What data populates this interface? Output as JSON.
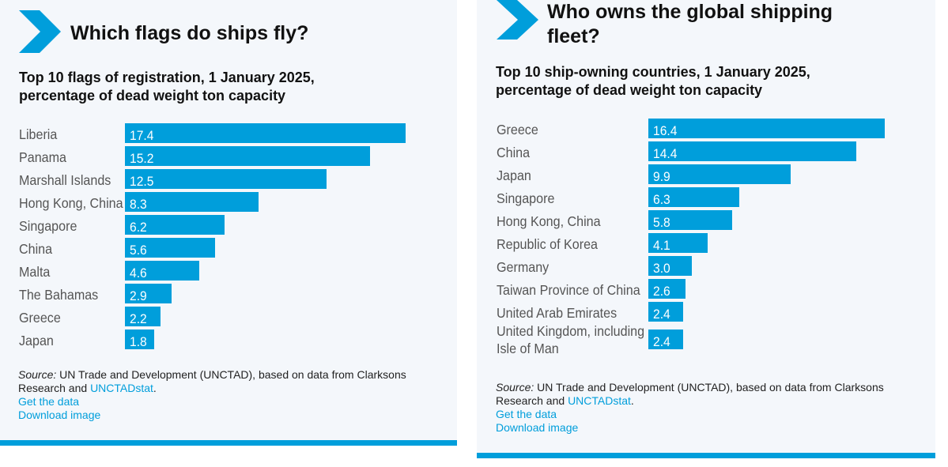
{
  "panels": [
    {
      "title": "Which flags do ships fly?",
      "subtitle_line1": "Top 10 flags of registration, 1 January 2025,",
      "subtitle_line2": "percentage of dead weight ton capacity",
      "source_label": "Source:",
      "source_text1": " UN Trade and Development (UNCTAD), based on data from Clarksons",
      "source_text2": "Research and ",
      "source_link": "UNCTADstat",
      "source_end": ".",
      "get_data": "Get the data",
      "download": "Download image"
    },
    {
      "title_line1": "Who owns the global shipping",
      "title_line2": "fleet?",
      "subtitle_line1": "Top 10 ship-owning countries, 1 January 2025,",
      "subtitle_line2": "percentage of dead weight ton capacity",
      "source_label": "Source:",
      "source_text1": " UN Trade and Development (UNCTAD), based on data from Clarksons",
      "source_text2": "Research and ",
      "source_link": "UNCTADstat",
      "source_end": ".",
      "get_data": "Get the data",
      "download": "Download image"
    }
  ],
  "colors": {
    "accent": "#009edb",
    "panel_bg": "#f4f7fb",
    "label": "#555555"
  },
  "chart_data": [
    {
      "type": "bar",
      "orientation": "horizontal",
      "title": "Which flags do ships fly?",
      "subtitle": "Top 10 flags of registration, 1 January 2025, percentage of dead weight ton capacity",
      "categories": [
        "Liberia",
        "Panama",
        "Marshall Islands",
        "Hong Kong, China",
        "Singapore",
        "China",
        "Malta",
        "The Bahamas",
        "Greece",
        "Japan"
      ],
      "values": [
        17.4,
        15.2,
        12.5,
        8.3,
        6.2,
        5.6,
        4.6,
        2.9,
        2.2,
        1.8
      ],
      "value_labels": [
        "17.4",
        "15.2",
        "12.5",
        "8.3",
        "6.2",
        "5.6",
        "4.6",
        "2.9",
        "2.2",
        "1.8"
      ],
      "xlim": [
        0,
        17.4
      ],
      "grid": false,
      "legend": "none"
    },
    {
      "type": "bar",
      "orientation": "horizontal",
      "title": "Who owns the global shipping fleet?",
      "subtitle": "Top 10 ship-owning countries, 1 January 2025, percentage of dead weight ton capacity",
      "categories": [
        "Greece",
        "China",
        "Japan",
        "Singapore",
        "Hong Kong, China",
        "Republic of Korea",
        "Germany",
        "Taiwan Province of China",
        "United Arab Emirates",
        [
          "United Kingdom, including",
          "Isle of Man"
        ]
      ],
      "values": [
        16.4,
        14.4,
        9.9,
        6.3,
        5.8,
        4.1,
        3.0,
        2.6,
        2.4,
        2.4
      ],
      "value_labels": [
        "16.4",
        "14.4",
        "9.9",
        "6.3",
        "5.8",
        "4.1",
        "3.0",
        "2.6",
        "2.4",
        "2.4"
      ],
      "xlim": [
        0,
        16.4
      ],
      "grid": false,
      "legend": "none"
    }
  ]
}
